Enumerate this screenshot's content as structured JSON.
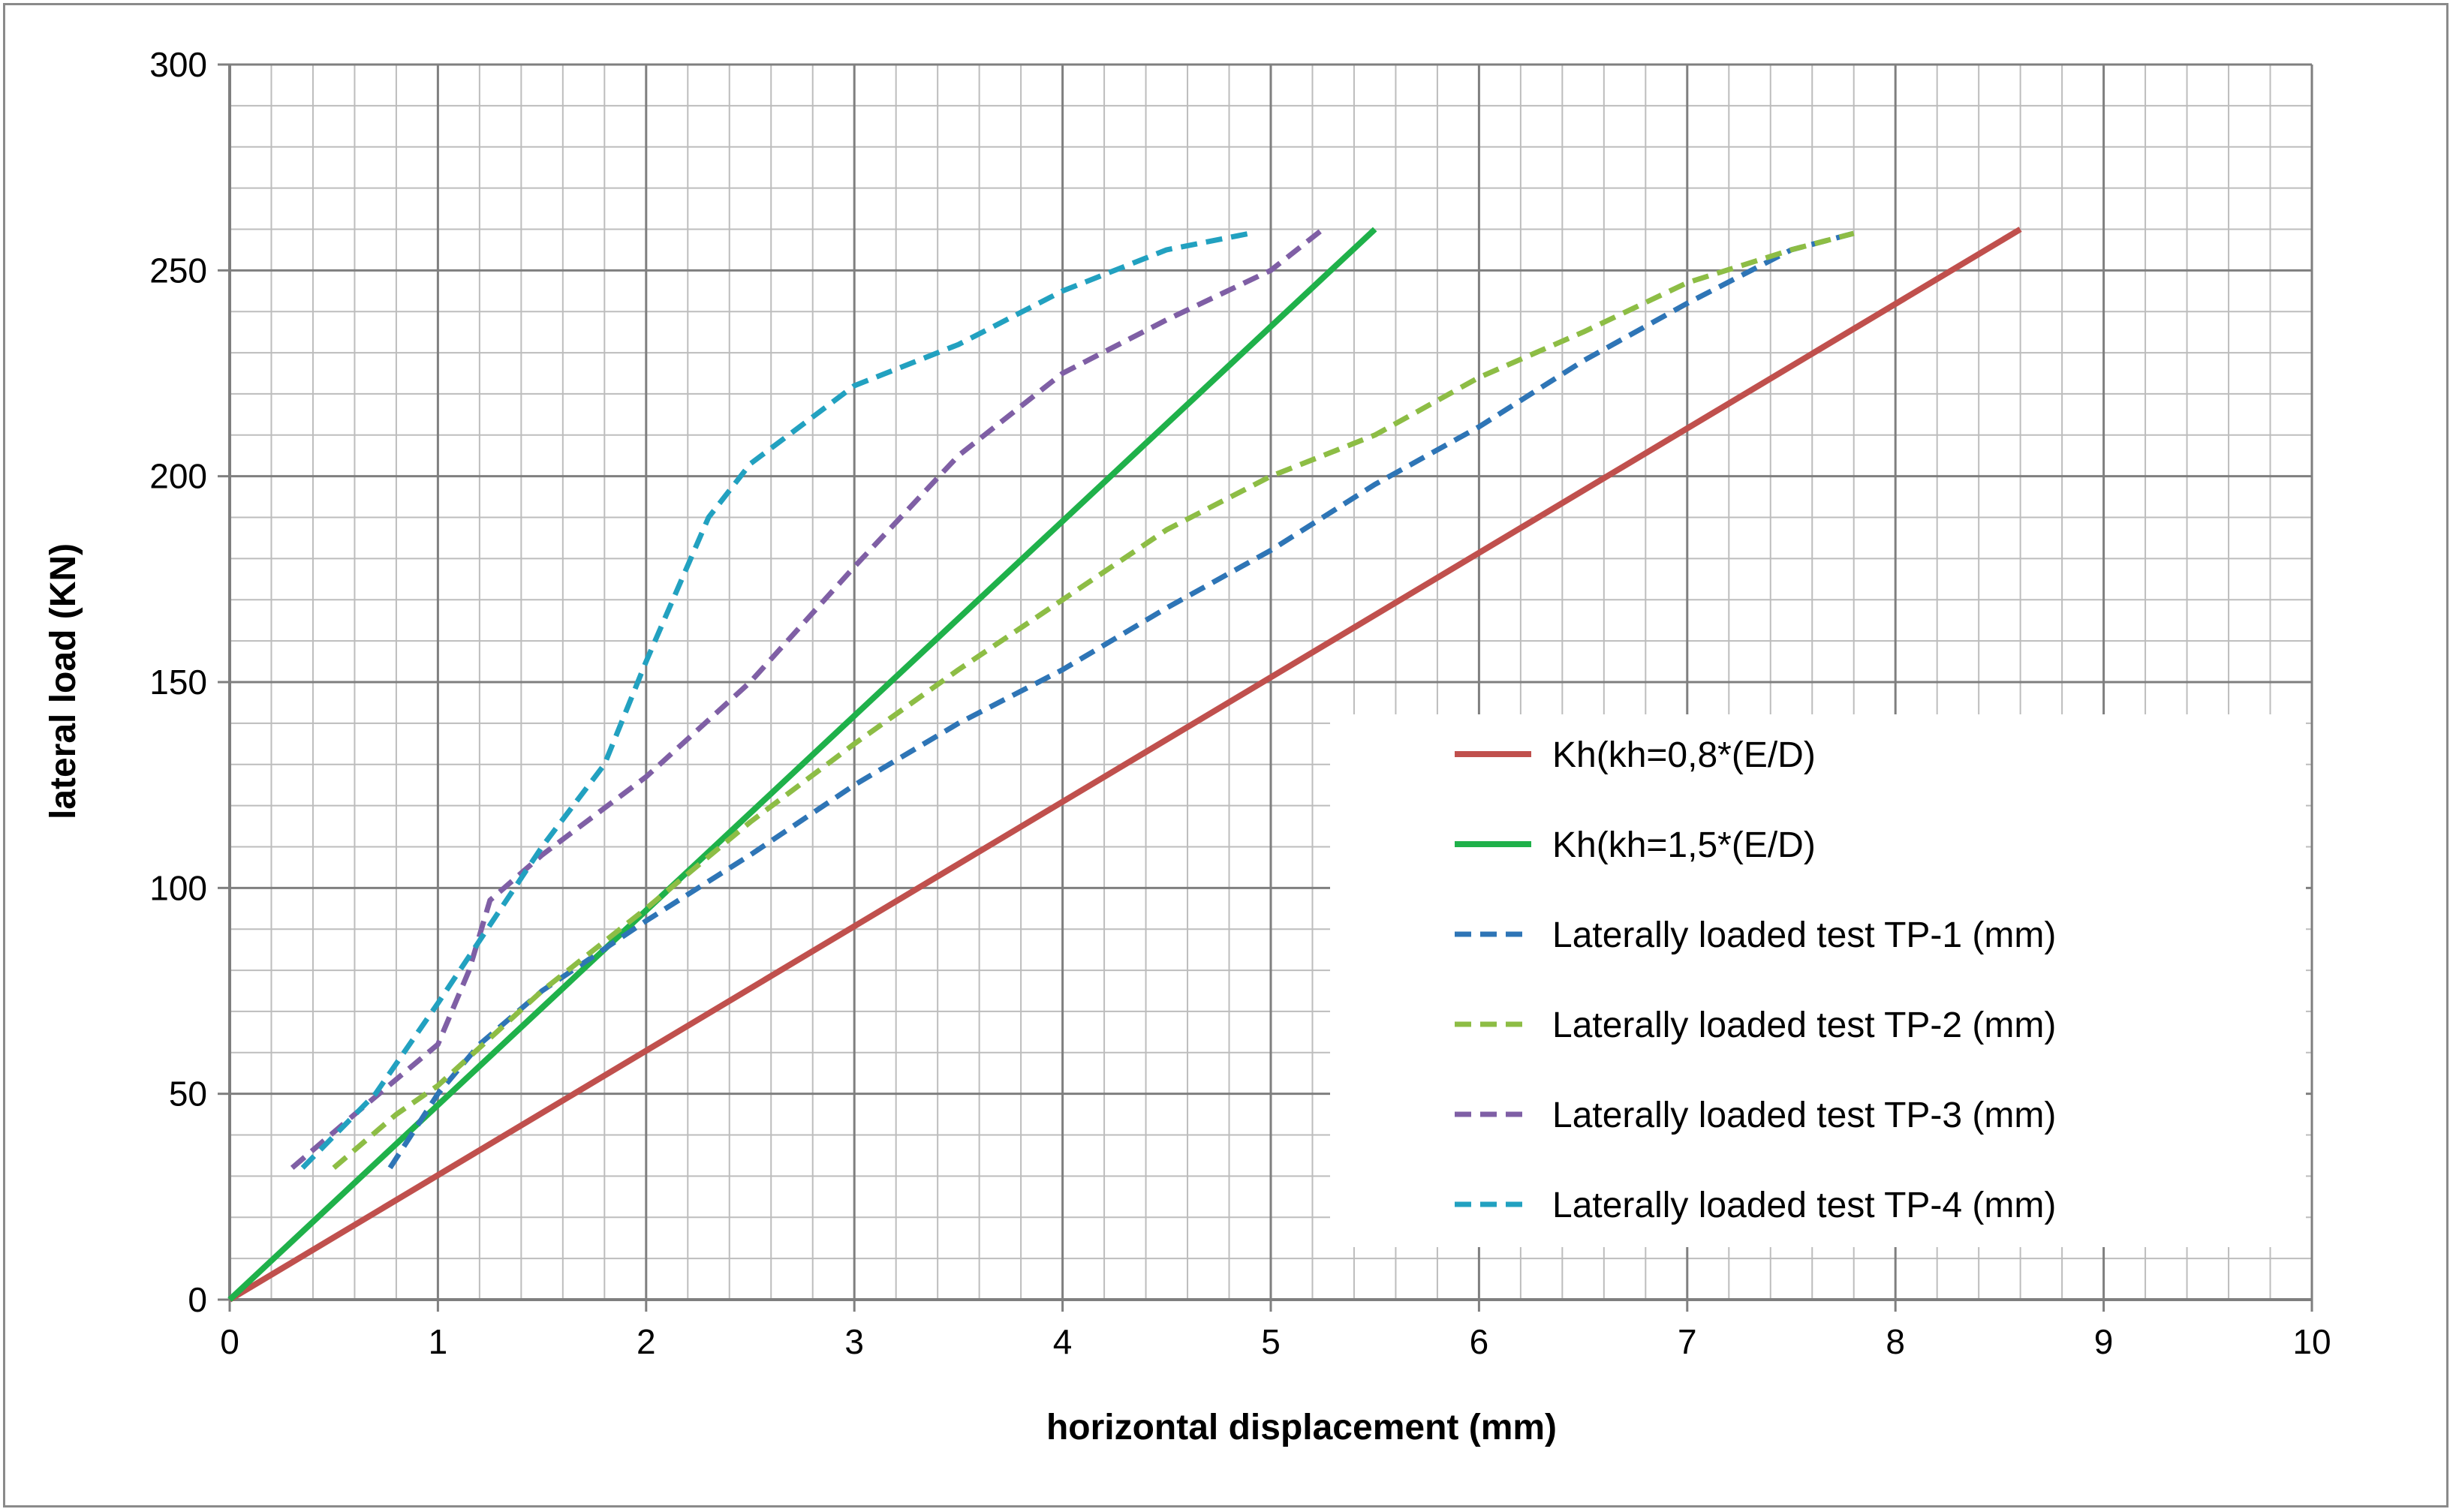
{
  "chart_data": {
    "type": "line",
    "xlabel": "horizontal displacement (mm)",
    "ylabel": "lateral load (KN)",
    "xlim": [
      0,
      10
    ],
    "ylim": [
      0,
      300
    ],
    "x_ticks": [
      0,
      1,
      2,
      3,
      4,
      5,
      6,
      7,
      8,
      9,
      10
    ],
    "y_ticks": [
      0,
      50,
      100,
      150,
      200,
      250,
      300
    ],
    "x_tick_labels": [
      "0",
      "1",
      "2",
      "3",
      "4",
      "5",
      "6",
      "7",
      "8",
      "9",
      "10"
    ],
    "y_tick_labels": [
      "0",
      "50",
      "100",
      "150",
      "200",
      "250",
      "300"
    ],
    "x_minor_step": 0.2,
    "y_minor_step": 10,
    "grid": true,
    "legend_position": "bottom-right",
    "series": [
      {
        "name": "Kh(kh=0,8*(E/D)",
        "color": "#c0504d",
        "style": "solid",
        "points": [
          [
            0,
            0
          ],
          [
            8.6,
            260
          ]
        ]
      },
      {
        "name": "Kh(kh=1,5*(E/D)",
        "color": "#1fb14a",
        "style": "solid",
        "points": [
          [
            0,
            0
          ],
          [
            5.5,
            260
          ]
        ]
      },
      {
        "name": "Laterally loaded test TP-1 (mm)",
        "color": "#2e75b6",
        "style": "dashed",
        "points": [
          [
            0.77,
            32
          ],
          [
            1.0,
            50
          ],
          [
            1.2,
            62
          ],
          [
            1.5,
            75
          ],
          [
            2.0,
            92
          ],
          [
            2.5,
            108
          ],
          [
            3.0,
            125
          ],
          [
            3.5,
            140
          ],
          [
            4.0,
            153
          ],
          [
            4.5,
            168
          ],
          [
            5.0,
            182
          ],
          [
            5.5,
            198
          ],
          [
            6.0,
            212
          ],
          [
            6.5,
            228
          ],
          [
            7.0,
            242
          ],
          [
            7.5,
            255
          ],
          [
            7.8,
            259
          ]
        ]
      },
      {
        "name": "Laterally loaded test TP-2 (mm)",
        "color": "#8dbd45",
        "style": "dashed",
        "points": [
          [
            0.5,
            32
          ],
          [
            0.8,
            45
          ],
          [
            1.0,
            52
          ],
          [
            1.5,
            75
          ],
          [
            2.0,
            95
          ],
          [
            2.5,
            116
          ],
          [
            3.0,
            135
          ],
          [
            3.5,
            153
          ],
          [
            4.0,
            170
          ],
          [
            4.5,
            187
          ],
          [
            5.0,
            200
          ],
          [
            5.5,
            210
          ],
          [
            6.0,
            224
          ],
          [
            6.5,
            235
          ],
          [
            7.0,
            247
          ],
          [
            7.5,
            255
          ],
          [
            7.8,
            259
          ]
        ]
      },
      {
        "name": "Laterally loaded test TP-3 (mm)",
        "color": "#7f5fa5",
        "style": "dashed",
        "points": [
          [
            0.3,
            32
          ],
          [
            0.6,
            45
          ],
          [
            1.0,
            62
          ],
          [
            1.15,
            80
          ],
          [
            1.25,
            97
          ],
          [
            1.5,
            108
          ],
          [
            2.0,
            127
          ],
          [
            2.5,
            150
          ],
          [
            3.0,
            178
          ],
          [
            3.5,
            205
          ],
          [
            4.0,
            225
          ],
          [
            4.5,
            238
          ],
          [
            5.0,
            250
          ],
          [
            5.25,
            260
          ]
        ]
      },
      {
        "name": "Laterally loaded test TP-4 (mm)",
        "color": "#22a1c0",
        "style": "dashed",
        "points": [
          [
            0.35,
            32
          ],
          [
            0.7,
            50
          ],
          [
            1.0,
            72
          ],
          [
            1.5,
            110
          ],
          [
            1.8,
            130
          ],
          [
            2.0,
            155
          ],
          [
            2.3,
            190
          ],
          [
            2.5,
            203
          ],
          [
            3.0,
            222
          ],
          [
            3.5,
            232
          ],
          [
            4.0,
            245
          ],
          [
            4.5,
            255
          ],
          [
            4.9,
            259
          ]
        ]
      }
    ]
  }
}
